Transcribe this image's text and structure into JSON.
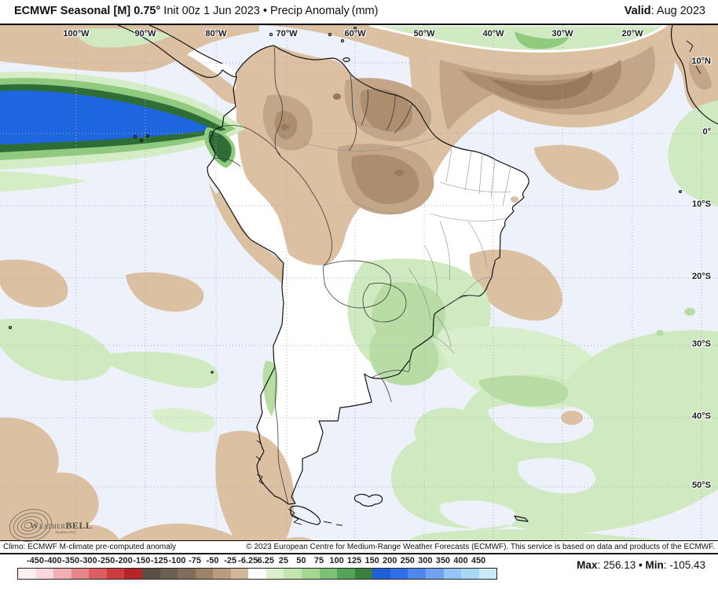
{
  "header": {
    "title_bold": "ECMWF Seasonal [M] 0.75°",
    "title_rest": " Init 00z 1 Jun 2023 • Precip Anomaly (mm)",
    "valid_label": "Valid",
    "valid_value": ": Aug 2023"
  },
  "map": {
    "lon_labels": [
      "100°W",
      "90°W",
      "80°W",
      "70°W",
      "60°W",
      "50°W",
      "40°W",
      "30°W",
      "20°W"
    ],
    "lat_labels": [
      "10°N",
      "0°",
      "10°S",
      "20°S",
      "30°S",
      "40°S",
      "50°S"
    ]
  },
  "logo": {
    "weather": "Weather",
    "bell": "BELL",
    "sub": "Analytics LLC"
  },
  "footer": {
    "climo": "Climo: ECMWF M-climate pre-computed anomaly",
    "copyright": "© 2023 European Centre for Medium-Range Weather Forecasts (ECMWF). This service is based on data and products of the ECMWF.",
    "max_label": "Max",
    "max_value": ": 256.13",
    "sep": " • ",
    "min_label": "Min",
    "min_value": ": -105.43"
  },
  "legend": {
    "tick_values": [
      "-450",
      "-400",
      "-350",
      "-300",
      "-250",
      "-200",
      "-150",
      "-125",
      "-100",
      "-75",
      "-50",
      "-25",
      "-6.25",
      "6.25",
      "25",
      "50",
      "75",
      "100",
      "125",
      "150",
      "200",
      "250",
      "300",
      "350",
      "400",
      "450"
    ],
    "segment_colors": [
      "#fdeff0",
      "#f9d7da",
      "#f2aeb2",
      "#e8878b",
      "#dd5e60",
      "#cd3d3f",
      "#b52427",
      "#5b5045",
      "#6d5f50",
      "#816d59",
      "#9c8268",
      "#b79c7f",
      "#d3b897",
      "#ffffff",
      "#dbefcd",
      "#c3e5b0",
      "#a4d78f",
      "#7cc272",
      "#54a458",
      "#3a7f40",
      "#1f60d8",
      "#3170e4",
      "#4f88ec",
      "#70a4f1",
      "#95c5f6",
      "#a8d8f6",
      "#c9ecf8"
    ],
    "units": "mm"
  },
  "colors": {
    "ocean": "#edf1f9",
    "land": "#ffffff",
    "tan_light": "#dcc0a2",
    "brown_med": "#c3a687",
    "brown_dark": "#ac8d6d",
    "brown_darkest": "#8f7356",
    "green_pale": "#d9eecb",
    "green_light": "#cfe9c0",
    "green_med": "#8fca7e",
    "green_dark": "#2f6d36",
    "blue_core": "#1e66e0"
  }
}
